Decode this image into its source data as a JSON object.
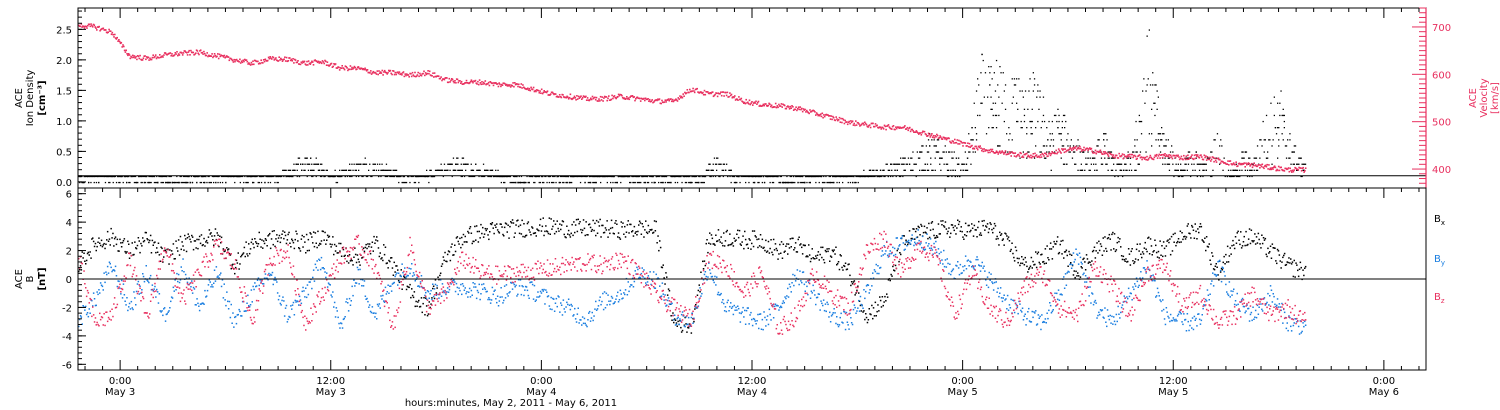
{
  "colors": {
    "density": "#000000",
    "velocity": "#e8305f",
    "bx": "#000000",
    "by": "#1a7ee0",
    "bz": "#e8305f",
    "frame": "#000000"
  },
  "xlabel": "hours:minutes, May  2, 2011 - May  6, 2011",
  "x_ticks": [
    {
      "hour": 24,
      "time": "0:00",
      "date": "May 3"
    },
    {
      "hour": 36,
      "time": "12:00",
      "date": "May 3"
    },
    {
      "hour": 48,
      "time": "0:00",
      "date": "May 4"
    },
    {
      "hour": 60,
      "time": "12:00",
      "date": "May 4"
    },
    {
      "hour": 72,
      "time": "0:00",
      "date": "May 5"
    },
    {
      "hour": 84,
      "time": "12:00",
      "date": "May 5"
    },
    {
      "hour": 96,
      "time": "0:00",
      "date": "May 6"
    }
  ],
  "chart_data": [
    {
      "type": "scatter",
      "panel": "top",
      "xlim_hours": [
        21.6,
        98.4
      ],
      "ylabel_left": [
        "ACE",
        "Ion Density",
        "[cm⁻³]"
      ],
      "ylabel_right": [
        "ACE",
        "Velocity",
        "[km/s]"
      ],
      "ylim_left": [
        -0.1,
        2.85
      ],
      "ylim_right": [
        360,
        740
      ],
      "left_ticks": [
        "0.0",
        "0.5",
        "1.0",
        "1.5",
        "2.0",
        "2.5"
      ],
      "left_tick_values": [
        0,
        0.5,
        1,
        1.5,
        2,
        2.5
      ],
      "right_ticks": [
        "400",
        "500",
        "600",
        "700"
      ],
      "right_tick_values": [
        400,
        500,
        600,
        700
      ],
      "series": [
        {
          "color": "#e8305f",
          "axis": "right",
          "x": [
            21.6,
            22.5,
            23.5,
            24.5,
            25.5,
            26.5,
            27.5,
            28.5,
            29.5,
            30.5,
            31.5,
            32.5,
            33.5,
            34.5,
            35.5,
            36.5,
            37.5,
            38.5,
            39.5,
            40.5,
            41.5,
            42.5,
            43.5,
            44.5,
            45.5,
            46.5,
            47.5,
            48.5,
            49.5,
            50.5,
            51.5,
            52.5,
            53.5,
            54.5,
            55.5,
            56.5,
            57.5,
            58.5,
            59.5,
            60.5,
            61.5,
            62.5,
            63.5,
            64.5,
            65.5,
            66.5,
            67.5,
            68.5,
            69.5,
            70.5,
            71.5,
            72.5,
            73.5,
            74.5,
            75.5,
            76.5,
            77.5,
            78.5,
            79.5,
            80.5,
            81.5,
            82.5,
            83.5,
            84.5,
            85.5,
            86.5,
            87.5,
            88.5,
            89.5,
            90.5,
            91.5
          ],
          "values": [
            705,
            702,
            690,
            640,
            635,
            642,
            646,
            648,
            640,
            632,
            625,
            634,
            633,
            625,
            628,
            615,
            614,
            605,
            605,
            600,
            605,
            590,
            585,
            585,
            580,
            580,
            570,
            560,
            555,
            550,
            550,
            555,
            550,
            545,
            545,
            570,
            560,
            560,
            545,
            538,
            535,
            530,
            520,
            510,
            500,
            495,
            490,
            490,
            480,
            470,
            460,
            450,
            440,
            435,
            430,
            430,
            440,
            445,
            440,
            430,
            428,
            425,
            430,
            426,
            428,
            420,
            412,
            410,
            405,
            400,
            400
          ]
        },
        {
          "color": "#000000",
          "axis": "left",
          "x": [
            21.6,
            23,
            25,
            27,
            29,
            30,
            32,
            33,
            34,
            35,
            36,
            37,
            38,
            39,
            40,
            41,
            42,
            43,
            44,
            45,
            46,
            47,
            48,
            49,
            50,
            51,
            52,
            53,
            54,
            55,
            56,
            57,
            58,
            59,
            60,
            61,
            62,
            63,
            64,
            65,
            66,
            67,
            68,
            69,
            70,
            71,
            72,
            72.5,
            73,
            73.5,
            74,
            74.5,
            75,
            75.5,
            76,
            76.5,
            77,
            77.5,
            78,
            78.5,
            79,
            79.5,
            80,
            80.5,
            81,
            81.5,
            82,
            82.5,
            83,
            83.5,
            84,
            84.5,
            85,
            85.5,
            86,
            86.5,
            87,
            87.5,
            88,
            88.5,
            89,
            89.5,
            90,
            90.5,
            91,
            91.5
          ],
          "values": [
            0.1,
            0.1,
            0.1,
            0.05,
            0.1,
            0.1,
            0.1,
            0.1,
            0.3,
            0.4,
            0.1,
            0.3,
            0.35,
            0.3,
            0.1,
            0.1,
            0.2,
            0.4,
            0.3,
            0.2,
            0.1,
            0.05,
            0.1,
            0.1,
            0.1,
            0.1,
            0.1,
            0.1,
            0.1,
            0.1,
            0.1,
            0.1,
            0.4,
            0.1,
            0.1,
            0.1,
            0.05,
            0.1,
            0.1,
            0.1,
            0.1,
            0.2,
            0.3,
            0.4,
            0.7,
            0.5,
            0.3,
            0.9,
            1.9,
            1.6,
            1.8,
            1.5,
            1.6,
            1.4,
            1.6,
            1.3,
            0.9,
            1.2,
            0.8,
            0.6,
            0.4,
            0.5,
            0.8,
            0.4,
            0.3,
            0.6,
            1.1,
            2.4,
            1.4,
            0.8,
            0.4,
            0.2,
            0.6,
            0.3,
            0.4,
            0.8,
            0.3,
            0.2,
            0.5,
            0.3,
            0.8,
            1.2,
            1.5,
            0.8,
            0.5,
            0.3
          ]
        }
      ]
    },
    {
      "type": "scatter",
      "panel": "bottom",
      "xlim_hours": [
        21.6,
        98.4
      ],
      "ylabel_left": [
        "ACE",
        "B",
        "[nT]"
      ],
      "ylim": [
        -6.4,
        6.4
      ],
      "ticks": [
        "-6",
        "-4",
        "-2",
        "0",
        "2",
        "4",
        "6"
      ],
      "tick_values": [
        -6,
        -4,
        -2,
        0,
        2,
        4,
        6
      ],
      "legend": [
        "B",
        "B",
        "B"
      ],
      "legend_sub": [
        "x",
        "y",
        "z"
      ],
      "legend_placement": "right",
      "series": [
        {
          "name": "Bx",
          "color": "#000000",
          "x": [
            21.6,
            22.5,
            23.5,
            24.5,
            25.5,
            26.5,
            27.5,
            28.5,
            29.5,
            30.5,
            31.5,
            32.5,
            33.5,
            34.5,
            35.5,
            36.5,
            37.5,
            38.5,
            39.5,
            40.5,
            41.5,
            42.5,
            43.5,
            44.5,
            45.5,
            46.5,
            47.5,
            48.5,
            49.5,
            50.5,
            51.5,
            52.5,
            53.5,
            54.5,
            55.5,
            56.5,
            57.5,
            58.5,
            59.5,
            60.5,
            61.5,
            62.5,
            63.5,
            64.5,
            65.5,
            66.5,
            67.5,
            68.5,
            69.5,
            70.5,
            71.5,
            72.5,
            73.5,
            74.5,
            75.5,
            76.5,
            77.5,
            78.5,
            79.5,
            80.5,
            81.5,
            82.5,
            83.5,
            84.5,
            85.5,
            86.5,
            87.5,
            88.5,
            89.5,
            90.5,
            91.5
          ],
          "values": [
            1.0,
            2.5,
            3.0,
            2.0,
            2.8,
            1.5,
            2.5,
            2.8,
            3.0,
            1.0,
            2.6,
            2.8,
            3.0,
            2.5,
            3.1,
            2.0,
            1.5,
            2.6,
            1.0,
            -1.0,
            -2.0,
            1.5,
            3.0,
            3.3,
            3.5,
            3.6,
            3.7,
            3.7,
            3.6,
            3.6,
            3.6,
            3.5,
            3.6,
            3.5,
            -3.0,
            -3.2,
            2.8,
            3.0,
            2.8,
            2.8,
            2.0,
            2.5,
            1.5,
            2.0,
            0.5,
            -2.5,
            -1.5,
            2.5,
            3.3,
            3.5,
            3.6,
            3.4,
            3.7,
            2.5,
            1.0,
            1.5,
            2.5,
            0.5,
            2.0,
            2.8,
            1.5,
            2.5,
            2.0,
            3.2,
            3.6,
            0.5,
            2.8,
            3.0,
            2.0,
            1.0,
            0.5
          ]
        },
        {
          "name": "By",
          "color": "#1a7ee0",
          "x": [
            21.6,
            22.5,
            23.5,
            24.5,
            25.5,
            26.5,
            27.5,
            28.5,
            29.5,
            30.5,
            31.5,
            32.5,
            33.5,
            34.5,
            35.5,
            36.5,
            37.5,
            38.5,
            39.5,
            40.5,
            41.5,
            42.5,
            43.5,
            44.5,
            45.5,
            46.5,
            47.5,
            48.5,
            49.5,
            50.5,
            51.5,
            52.5,
            53.5,
            54.5,
            55.5,
            56.5,
            57.5,
            58.5,
            59.5,
            60.5,
            61.5,
            62.5,
            63.5,
            64.5,
            65.5,
            66.5,
            67.5,
            68.5,
            69.5,
            70.5,
            71.5,
            72.5,
            73.5,
            74.5,
            75.5,
            76.5,
            77.5,
            78.5,
            79.5,
            80.5,
            81.5,
            82.5,
            83.5,
            84.5,
            85.5,
            86.5,
            87.5,
            88.5,
            89.5,
            90.5,
            91.5
          ],
          "values": [
            -2.8,
            -1.5,
            1.0,
            -2.0,
            0.5,
            -2.5,
            1.0,
            -2.0,
            0.5,
            -3.0,
            -1.0,
            0.5,
            -2.5,
            -1.0,
            1.5,
            -3.5,
            0.5,
            -2.5,
            0.0,
            1.0,
            -1.0,
            -0.5,
            -0.5,
            -0.8,
            -1.2,
            -0.5,
            -0.8,
            -1.5,
            -2.0,
            -2.8,
            -1.5,
            -1.0,
            0.5,
            0.0,
            -2.5,
            -3.0,
            1.0,
            -2.0,
            -2.5,
            -3.0,
            -2.0,
            0.5,
            -1.0,
            -2.5,
            -3.0,
            -1.0,
            2.0,
            2.5,
            3.0,
            2.0,
            0.5,
            1.5,
            0.0,
            -1.5,
            -2.5,
            -3.0,
            -1.0,
            2.0,
            -2.0,
            -3.0,
            -1.0,
            1.0,
            -2.5,
            -3.0,
            -3.0,
            1.0,
            -1.5,
            -2.5,
            -1.0,
            -3.0,
            -3.3
          ]
        },
        {
          "name": "Bz",
          "color": "#e8305f",
          "x": [
            21.6,
            22.5,
            23.5,
            24.5,
            25.5,
            26.5,
            27.5,
            28.5,
            29.5,
            30.5,
            31.5,
            32.5,
            33.5,
            34.5,
            35.5,
            36.5,
            37.5,
            38.5,
            39.5,
            40.5,
            41.5,
            42.5,
            43.5,
            44.5,
            45.5,
            46.5,
            47.5,
            48.5,
            49.5,
            50.5,
            51.5,
            52.5,
            53.5,
            54.5,
            55.5,
            56.5,
            57.5,
            58.5,
            59.5,
            60.5,
            61.5,
            62.5,
            63.5,
            64.5,
            65.5,
            66.5,
            67.5,
            68.5,
            69.5,
            70.5,
            71.5,
            72.5,
            73.5,
            74.5,
            75.5,
            76.5,
            77.5,
            78.5,
            79.5,
            80.5,
            81.5,
            82.5,
            83.5,
            84.5,
            85.5,
            86.5,
            87.5,
            88.5,
            89.5,
            90.5,
            91.5
          ],
          "values": [
            1.5,
            -3.0,
            -2.5,
            1.5,
            -2.8,
            2.5,
            -1.5,
            0.5,
            2.5,
            1.0,
            -3.0,
            1.5,
            2.0,
            -3.0,
            -1.0,
            1.5,
            2.5,
            1.0,
            -3.5,
            2.5,
            -2.0,
            -1.0,
            1.5,
            0.5,
            0.3,
            0.5,
            0.6,
            0.8,
            1.0,
            1.2,
            1.0,
            1.5,
            0.5,
            -1.0,
            -2.0,
            -2.8,
            1.5,
            1.0,
            -1.0,
            0.5,
            -3.5,
            -2.5,
            0.5,
            -1.0,
            -2.0,
            2.0,
            3.0,
            0.5,
            2.5,
            1.5,
            -2.5,
            0.5,
            -2.0,
            -3.0,
            -0.5,
            0.5,
            -2.0,
            -2.5,
            1.0,
            -0.5,
            -2.5,
            0.5,
            1.0,
            -2.0,
            -1.0,
            -3.0,
            -2.5,
            -1.0,
            -2.5,
            -2.0,
            -3.0
          ]
        }
      ]
    }
  ]
}
